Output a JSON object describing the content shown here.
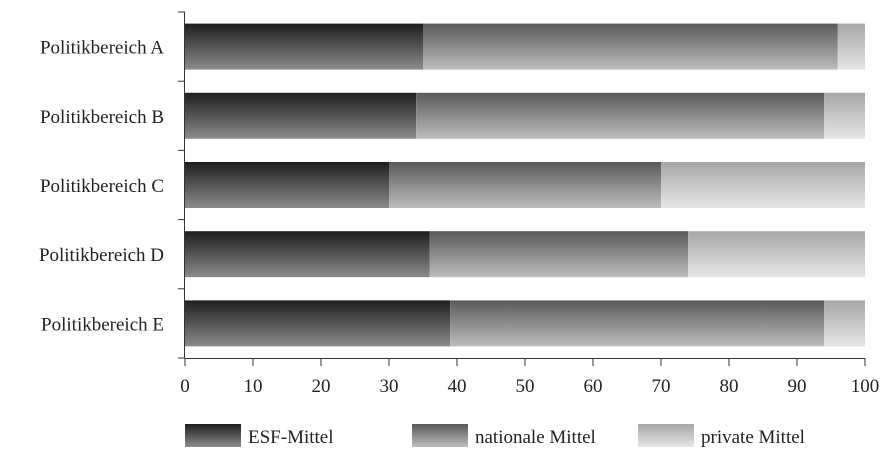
{
  "chart_data": {
    "type": "bar",
    "orientation": "horizontal",
    "stacked": true,
    "categories": [
      "Politikbereich A",
      "Politikbereich B",
      "Politikbereich C",
      "Politikbereich D",
      "Politikbereich E"
    ],
    "series": [
      {
        "name": "ESF-Mittel",
        "values": [
          35,
          34,
          30,
          36,
          39
        ]
      },
      {
        "name": "nationale Mittel",
        "values": [
          61,
          60,
          40,
          38,
          55
        ]
      },
      {
        "name": "private Mittel",
        "values": [
          4,
          6,
          30,
          26,
          6
        ]
      }
    ],
    "xlim": [
      0,
      100
    ],
    "xticks": [
      "0",
      "10",
      "20",
      "30",
      "40",
      "50",
      "60",
      "70",
      "80",
      "90",
      "100"
    ],
    "grid": false,
    "legend_position": "bottom",
    "colors": {
      "ESF-Mittel": [
        "#1e1e1e",
        "#8c8c8c"
      ],
      "nationale Mittel": [
        "#5a5a5a",
        "#bdbdbd"
      ],
      "private Mittel": [
        "#a6a6a6",
        "#e6e6e6"
      ]
    }
  }
}
